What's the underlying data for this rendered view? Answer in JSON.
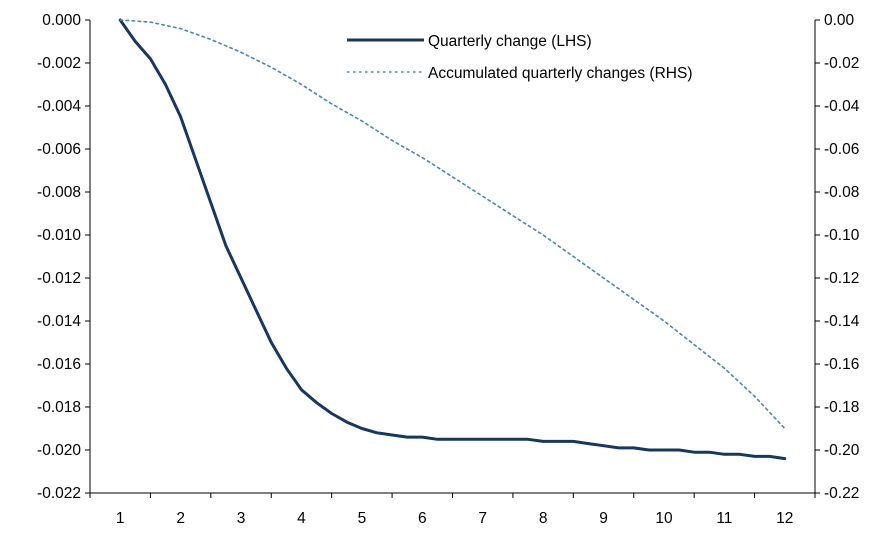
{
  "chart_data": {
    "type": "line",
    "title": "",
    "xlabel": "",
    "ylabel_left": "",
    "ylabel_right": "",
    "x_ticks": [
      1,
      2,
      3,
      4,
      5,
      6,
      7,
      8,
      9,
      10,
      11,
      12
    ],
    "x_range": [
      0.5,
      12.5
    ],
    "y_left": {
      "range": [
        -0.022,
        0.0
      ],
      "ticks": [
        0.0,
        -0.002,
        -0.004,
        -0.006,
        -0.008,
        -0.01,
        -0.012,
        -0.014,
        -0.016,
        -0.018,
        -0.02,
        -0.022
      ],
      "tick_labels": [
        "0.000",
        "-0.002",
        "-0.004",
        "-0.006",
        "-0.008",
        "-0.010",
        "-0.012",
        "-0.014",
        "-0.016",
        "-0.018",
        "-0.020",
        "-0.022"
      ]
    },
    "y_right": {
      "range": [
        -0.22,
        0.0
      ],
      "ticks": [
        0.0,
        -0.02,
        -0.04,
        -0.06,
        -0.08,
        -0.1,
        -0.12,
        -0.14,
        -0.16,
        -0.18,
        -0.2,
        -0.22
      ],
      "tick_labels": [
        "0.00",
        "-0.02",
        "-0.04",
        "-0.06",
        "-0.08",
        "-0.10",
        "-0.12",
        "-0.14",
        "-0.16",
        "-0.18",
        "-0.20",
        "-0.22"
      ]
    },
    "legend_position": "top-right",
    "grid": false,
    "series": [
      {
        "name": "Quarterly change (LHS)",
        "axis": "left",
        "style": "solid",
        "color": "#17375e",
        "x": [
          1.0,
          1.25,
          1.5,
          1.75,
          2.0,
          2.25,
          2.5,
          2.75,
          3.0,
          3.25,
          3.5,
          3.75,
          4.0,
          4.25,
          4.5,
          4.75,
          5.0,
          5.25,
          5.5,
          5.75,
          6.0,
          6.25,
          6.5,
          6.75,
          7.0,
          7.25,
          7.5,
          7.75,
          8.0,
          8.25,
          8.5,
          8.75,
          9.0,
          9.25,
          9.5,
          9.75,
          10.0,
          10.25,
          10.5,
          10.75,
          11.0,
          11.25,
          11.5,
          11.75,
          12.0
        ],
        "y": [
          0.0,
          -0.001,
          -0.0018,
          -0.003,
          -0.0045,
          -0.0065,
          -0.0085,
          -0.0105,
          -0.012,
          -0.0135,
          -0.015,
          -0.0162,
          -0.0172,
          -0.0178,
          -0.0183,
          -0.0187,
          -0.019,
          -0.0192,
          -0.0193,
          -0.0194,
          -0.0194,
          -0.0195,
          -0.0195,
          -0.0195,
          -0.0195,
          -0.0195,
          -0.0195,
          -0.0195,
          -0.0196,
          -0.0196,
          -0.0196,
          -0.0197,
          -0.0198,
          -0.0199,
          -0.0199,
          -0.02,
          -0.02,
          -0.02,
          -0.0201,
          -0.0201,
          -0.0202,
          -0.0202,
          -0.0203,
          -0.0203,
          -0.0204
        ]
      },
      {
        "name": "Accumulated quarterly changes (RHS)",
        "axis": "right",
        "style": "dotted",
        "color": "#4a86b5",
        "x": [
          1.0,
          1.5,
          2.0,
          2.5,
          3.0,
          3.5,
          4.0,
          4.5,
          5.0,
          5.5,
          6.0,
          6.5,
          7.0,
          7.5,
          8.0,
          8.5,
          9.0,
          9.5,
          10.0,
          10.5,
          11.0,
          11.5,
          12.0
        ],
        "y": [
          0.0,
          -0.001,
          -0.004,
          -0.009,
          -0.015,
          -0.022,
          -0.03,
          -0.039,
          -0.047,
          -0.056,
          -0.064,
          -0.073,
          -0.082,
          -0.091,
          -0.1,
          -0.11,
          -0.12,
          -0.13,
          -0.14,
          -0.151,
          -0.162,
          -0.175,
          -0.19
        ]
      }
    ]
  }
}
